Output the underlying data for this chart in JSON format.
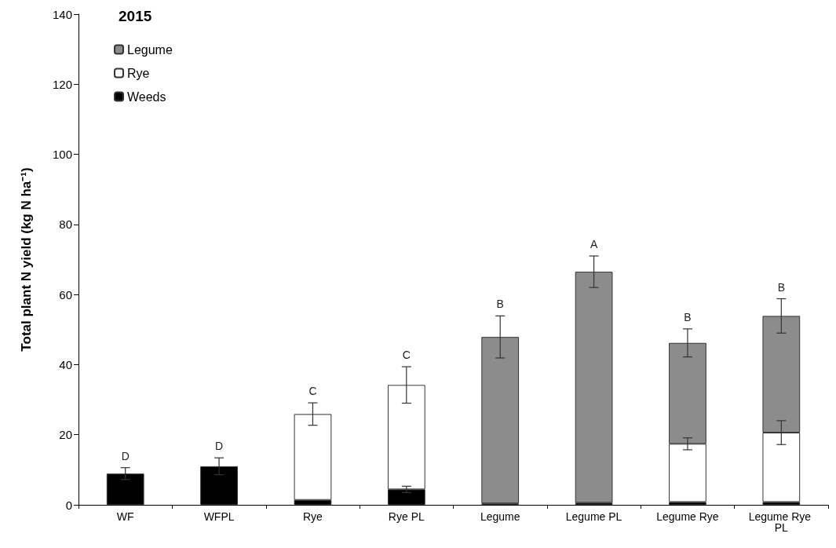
{
  "chart_data": {
    "type": "bar",
    "title": "2015",
    "ylabel": "Total plant N yield (kg N ha⁻¹)",
    "categories": [
      "WF",
      "WFPL",
      "Rye",
      "Rye PL",
      "Legume",
      "Legume PL",
      "Legume Rye",
      "Legume Rye PL"
    ],
    "stacked": true,
    "series": [
      {
        "name": "Weeds",
        "color": "#000000",
        "values": [
          8.9,
          11.0,
          1.4,
          4.4,
          0.4,
          0.6,
          0.8,
          0.8
        ],
        "errors": [
          1.7,
          2.4,
          null,
          0.9,
          null,
          null,
          null,
          null
        ]
      },
      {
        "name": "Rye",
        "color": "#ffffff",
        "values": [
          null,
          null,
          24.5,
          29.8,
          null,
          null,
          16.6,
          19.8
        ],
        "errors": [
          null,
          null,
          3.2,
          5.2,
          null,
          null,
          1.7,
          3.4
        ]
      },
      {
        "name": "Legume",
        "color": "#8c8c8c",
        "values": [
          null,
          null,
          null,
          null,
          47.5,
          65.9,
          28.8,
          33.3
        ],
        "errors": [
          null,
          null,
          null,
          null,
          6.0,
          4.5,
          4.0,
          4.9
        ]
      }
    ],
    "annotations": [
      "D",
      "D",
      "C",
      "C",
      "B",
      "A",
      "B",
      "B"
    ],
    "ylim": [
      0,
      140
    ],
    "yticks": [
      0,
      20,
      40,
      60,
      80,
      100,
      120,
      140
    ],
    "grid": false,
    "legend": "top left"
  }
}
